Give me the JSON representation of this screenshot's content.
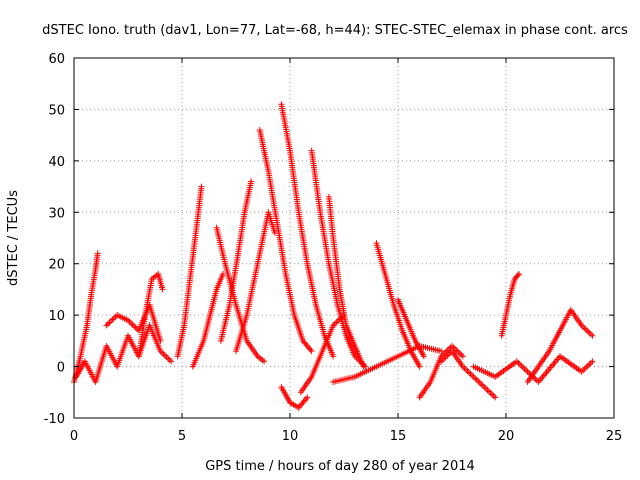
{
  "chart_data": {
    "type": "scatter",
    "title": "dSTEC Iono. truth (dav1, Lon=77, Lat=-68, h=44): STEC-STEC_elemax in phase cont. arcs",
    "xlabel": "GPS time / hours of day 280 of year 2014",
    "ylabel": "dSTEC  / TECUs",
    "xlim": [
      0,
      25
    ],
    "ylim": [
      -10,
      60
    ],
    "x_ticks": [
      "0",
      "5",
      "10",
      "15",
      "20",
      "25"
    ],
    "y_ticks": [
      "-10",
      "0",
      "10",
      "20",
      "30",
      "40",
      "50",
      "60"
    ],
    "grid": true,
    "marker": "+",
    "color": "#ff0000",
    "series": [
      {
        "x": [
          0.0,
          0.3,
          0.6,
          0.8,
          1.0,
          1.1
        ],
        "y": [
          -3,
          2,
          8,
          14,
          19,
          22
        ]
      },
      {
        "x": [
          0.1,
          0.5,
          1.0,
          1.5,
          2.0,
          2.5,
          3.0,
          3.5,
          4.0,
          4.5
        ],
        "y": [
          -2,
          1,
          -3,
          4,
          0,
          6,
          2,
          8,
          3,
          1
        ]
      },
      {
        "x": [
          1.5,
          2.0,
          2.5,
          3.0,
          3.5,
          4.0
        ],
        "y": [
          8,
          10,
          9,
          7,
          12,
          5
        ]
      },
      {
        "x": [
          3.0,
          3.3,
          3.6,
          3.9,
          4.1
        ],
        "y": [
          2,
          10,
          17,
          18,
          15
        ]
      },
      {
        "x": [
          4.8,
          5.1,
          5.4,
          5.7,
          5.9
        ],
        "y": [
          2,
          8,
          18,
          28,
          35
        ]
      },
      {
        "x": [
          5.5,
          6.0,
          6.3,
          6.6,
          6.9
        ],
        "y": [
          0,
          5,
          10,
          15,
          18
        ]
      },
      {
        "x": [
          6.8,
          7.2,
          7.6,
          7.9,
          8.2
        ],
        "y": [
          5,
          12,
          22,
          30,
          36
        ]
      },
      {
        "x": [
          6.6,
          7.0,
          7.5,
          8.0,
          8.5,
          8.8
        ],
        "y": [
          27,
          20,
          12,
          5,
          2,
          1
        ]
      },
      {
        "x": [
          7.5,
          8.0,
          8.5,
          9.0,
          9.3
        ],
        "y": [
          3,
          10,
          20,
          30,
          26
        ]
      },
      {
        "x": [
          8.6,
          9.0,
          9.4,
          9.8,
          10.2,
          10.6,
          11.0
        ],
        "y": [
          46,
          38,
          28,
          18,
          10,
          5,
          3
        ]
      },
      {
        "x": [
          9.6,
          10.0,
          10.4,
          10.8,
          11.2,
          11.6,
          12.0
        ],
        "y": [
          51,
          42,
          30,
          20,
          12,
          6,
          2
        ]
      },
      {
        "x": [
          9.6,
          10.0,
          10.4,
          10.8
        ],
        "y": [
          -4,
          -7,
          -8,
          -6
        ]
      },
      {
        "x": [
          11.0,
          11.4,
          11.8,
          12.2,
          12.6,
          13.0,
          13.5
        ],
        "y": [
          42,
          30,
          20,
          12,
          6,
          2,
          0
        ]
      },
      {
        "x": [
          11.8,
          12.0,
          12.3,
          12.6,
          13.0,
          13.4
        ],
        "y": [
          33,
          25,
          15,
          8,
          4,
          0
        ]
      },
      {
        "x": [
          10.5,
          11.0,
          11.5,
          12.0,
          12.5
        ],
        "y": [
          -5,
          -2,
          3,
          8,
          10
        ]
      },
      {
        "x": [
          12.0,
          13.0,
          14.0,
          15.0,
          16.0,
          17.0
        ],
        "y": [
          -3,
          -2,
          0,
          2,
          4,
          3
        ]
      },
      {
        "x": [
          14.0,
          14.4,
          14.8,
          15.2,
          15.6,
          16.0
        ],
        "y": [
          24,
          18,
          12,
          7,
          3,
          0
        ]
      },
      {
        "x": [
          15.0,
          15.4,
          15.8,
          16.2
        ],
        "y": [
          13,
          9,
          5,
          2
        ]
      },
      {
        "x": [
          16.0,
          16.5,
          17.0,
          17.5,
          18.0
        ],
        "y": [
          -6,
          -3,
          2,
          4,
          2
        ]
      },
      {
        "x": [
          17.0,
          17.5,
          18.0,
          18.5,
          19.0,
          19.5
        ],
        "y": [
          1,
          3,
          0,
          -2,
          -4,
          -6
        ]
      },
      {
        "x": [
          19.8,
          20.0,
          20.2,
          20.4,
          20.6
        ],
        "y": [
          6,
          10,
          14,
          17,
          18
        ]
      },
      {
        "x": [
          18.5,
          19.5,
          20.5,
          21.5,
          22.5,
          23.5,
          24.0
        ],
        "y": [
          0,
          -2,
          1,
          -3,
          2,
          -1,
          1
        ]
      },
      {
        "x": [
          21.0,
          21.5,
          22.0,
          22.5,
          23.0,
          23.5,
          24.0
        ],
        "y": [
          -3,
          0,
          3,
          7,
          11,
          8,
          6
        ]
      }
    ]
  }
}
